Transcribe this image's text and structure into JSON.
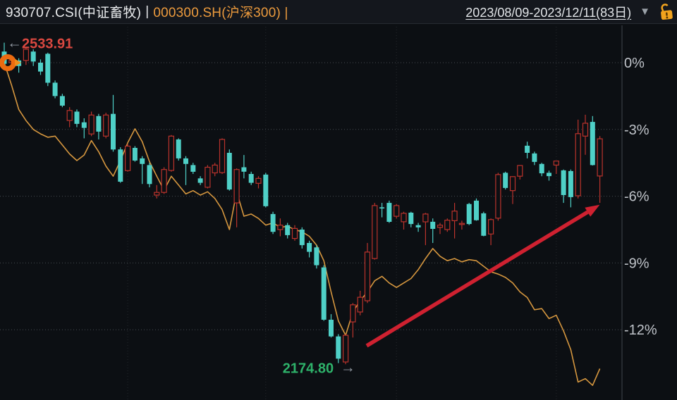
{
  "header": {
    "symbol_primary": "930707.CSI(中证畜牧)",
    "separator": "|",
    "symbol_benchmark": "000300.SH(沪深300) |",
    "date_range": "2023/08/09-2023/12/11(83日)",
    "dropdown_glyph": "▼"
  },
  "colors": {
    "background": "#0c0f13",
    "header_background": "#14171d",
    "title_primary": "#e9ebed",
    "title_benchmark": "#eb9a3d",
    "candle_up": "#bb332c",
    "candle_down": "#4fd0c7",
    "benchmark_line": "#d6973f",
    "trend_arrow": "#cf2130",
    "high_label": "#d94840",
    "low_label": "#2eb26a",
    "lock_icon": "#f2a31d",
    "axis_text": "#bfc3c9"
  },
  "chart_data": {
    "type": "candlestick",
    "title": "930707.CSI(中证畜牧) vs 000300.SH(沪深300) relative performance",
    "x_axis": {
      "start_date": "2023/08/09",
      "end_date": "2023/12/11",
      "days": 83,
      "month_gridline_days": [
        17,
        36,
        54,
        76
      ]
    },
    "y_axis": {
      "unit": "percent_change",
      "ticks": [
        {
          "label": "0%",
          "value": 0
        },
        {
          "label": "-3%",
          "value": -3
        },
        {
          "label": "-6%",
          "value": -6
        },
        {
          "label": "-9%",
          "value": -9
        },
        {
          "label": "-12%",
          "value": -12
        }
      ]
    },
    "series": [
      {
        "name": "930707.CSI 中证畜牧",
        "style": "candles",
        "up_color": "#bb332c",
        "down_color": "#4fd0c7",
        "candles_ohlc_pct": [
          [
            0.5,
            0.9,
            -0.2,
            -0.05
          ],
          [
            0.0,
            0.3,
            -0.35,
            0.1
          ],
          [
            0.1,
            0.2,
            -0.45,
            -0.15
          ],
          [
            0.1,
            0.65,
            -0.1,
            0.6
          ],
          [
            0.5,
            0.6,
            -0.15,
            0.05
          ],
          [
            0.0,
            0.15,
            -0.55,
            -0.4
          ],
          [
            0.4,
            0.45,
            -1.05,
            -0.9
          ],
          [
            -0.9,
            -0.8,
            -1.6,
            -1.5
          ],
          [
            -1.5,
            -1.4,
            -2.0,
            -1.93
          ],
          [
            -2.6,
            -2.0,
            -2.9,
            -2.15
          ],
          [
            -2.2,
            -2.1,
            -2.9,
            -2.75
          ],
          [
            -2.68,
            -2.5,
            -3.4,
            -2.93
          ],
          [
            -3.2,
            -2.2,
            -3.3,
            -2.35
          ],
          [
            -2.4,
            -2.3,
            -3.45,
            -3.1
          ],
          [
            -3.3,
            -2.25,
            -3.4,
            -2.35
          ],
          [
            -2.3,
            -1.45,
            -4.0,
            -3.9
          ],
          [
            -3.9,
            -3.8,
            -5.4,
            -5.35
          ],
          [
            -4.85,
            -3.65,
            -4.9,
            -3.75
          ],
          [
            -3.83,
            -3.75,
            -4.45,
            -4.4
          ],
          [
            -4.3,
            -4.2,
            -5.45,
            -4.55
          ],
          [
            -4.6,
            -4.5,
            -5.6,
            -5.45
          ],
          [
            -5.95,
            -5.5,
            -6.1,
            -5.83
          ],
          [
            -5.83,
            -4.7,
            -5.9,
            -4.8
          ],
          [
            -4.84,
            -3.25,
            -4.9,
            -3.3
          ],
          [
            -3.45,
            -3.4,
            -4.4,
            -4.3
          ],
          [
            -4.3,
            -4.2,
            -5.5,
            -4.55
          ],
          [
            -4.6,
            -4.5,
            -5.0,
            -4.9
          ],
          [
            -5.2,
            -5.1,
            -5.5,
            -5.4
          ],
          [
            -5.6,
            -4.6,
            -5.65,
            -4.7
          ],
          [
            -4.95,
            -4.5,
            -5.1,
            -4.6
          ],
          [
            -4.94,
            -3.4,
            -5.0,
            -3.45
          ],
          [
            -4.05,
            -3.9,
            -5.75,
            -5.7
          ],
          [
            -6.3,
            -4.75,
            -7.4,
            -4.8
          ],
          [
            -4.7,
            -4.15,
            -5.2,
            -4.9
          ],
          [
            -5.0,
            -4.9,
            -5.5,
            -5.4
          ],
          [
            -5.42,
            -5.1,
            -5.65,
            -5.2
          ],
          [
            -5.03,
            -4.95,
            -6.5,
            -6.45
          ],
          [
            -6.8,
            -6.7,
            -7.7,
            -7.6
          ],
          [
            -7.5,
            -7.0,
            -7.8,
            -7.3
          ],
          [
            -7.3,
            -7.2,
            -7.9,
            -7.75
          ],
          [
            -7.9,
            -7.3,
            -8.0,
            -7.45
          ],
          [
            -7.5,
            -7.4,
            -8.35,
            -8.2
          ],
          [
            -8.1,
            -8.0,
            -8.75,
            -8.5
          ],
          [
            -8.3,
            -8.2,
            -9.25,
            -9.1
          ],
          [
            -9.2,
            -9.1,
            -11.6,
            -11.55
          ],
          [
            -11.55,
            -11.3,
            -12.35,
            -12.3
          ],
          [
            -12.3,
            -12.2,
            -13.5,
            -13.3
          ],
          [
            -13.45,
            -12.2,
            -13.55,
            -12.25
          ],
          [
            -11.65,
            -10.8,
            -12.35,
            -10.88
          ],
          [
            -11.2,
            -10.25,
            -11.35,
            -10.54
          ],
          [
            -10.7,
            -8.1,
            -10.8,
            -8.51
          ],
          [
            -8.8,
            -6.3,
            -8.85,
            -6.42
          ],
          [
            -6.5,
            -6.3,
            -6.95,
            -6.55
          ],
          [
            -6.3,
            -6.2,
            -7.2,
            -7.15
          ],
          [
            -6.9,
            -6.35,
            -7.0,
            -6.42
          ],
          [
            -7.15,
            -6.7,
            -7.5,
            -6.77
          ],
          [
            -6.74,
            -6.7,
            -7.4,
            -7.25
          ],
          [
            -7.3,
            -7.2,
            -7.6,
            -7.4
          ],
          [
            -7.15,
            -6.75,
            -8.2,
            -6.8
          ],
          [
            -7.15,
            -7.0,
            -8.1,
            -7.47
          ],
          [
            -7.4,
            -7.2,
            -7.7,
            -7.3
          ],
          [
            -7.5,
            -7.0,
            -7.6,
            -7.08
          ],
          [
            -7.1,
            -6.3,
            -7.9,
            -6.67
          ],
          [
            -7.25,
            -7.1,
            -7.5,
            -7.22
          ],
          [
            -6.35,
            -6.3,
            -7.3,
            -7.25
          ],
          [
            -6.2,
            -6.1,
            -7.1,
            -7.08
          ],
          [
            -6.77,
            -6.7,
            -7.8,
            -7.78
          ],
          [
            -7.7,
            -7.0,
            -8.2,
            -7.05
          ],
          [
            -6.99,
            -4.95,
            -7.1,
            -5.03
          ],
          [
            -4.95,
            -4.9,
            -5.7,
            -5.63
          ],
          [
            -5.75,
            -5.1,
            -6.35,
            -5.12
          ],
          [
            -5.1,
            -4.6,
            -5.25,
            -4.62
          ],
          [
            -3.73,
            -3.55,
            -4.3,
            -4.05
          ],
          [
            -4.08,
            -4.0,
            -4.6,
            -4.46
          ],
          [
            -4.55,
            -4.5,
            -5.1,
            -4.97
          ],
          [
            -4.95,
            -4.85,
            -5.3,
            -5.1
          ],
          [
            -4.6,
            -4.4,
            -5.0,
            -4.42
          ],
          [
            -4.84,
            -4.8,
            -6.3,
            -5.95
          ],
          [
            -4.87,
            -4.8,
            -6.5,
            -6.04
          ],
          [
            -5.98,
            -2.56,
            -6.1,
            -3.19
          ],
          [
            -3.3,
            -2.34,
            -4.14,
            -2.72
          ],
          [
            -2.66,
            -2.4,
            -4.62,
            -4.6
          ],
          [
            -5.09,
            -3.3,
            -6.3,
            -3.42
          ]
        ]
      },
      {
        "name": "000300.SH 沪深300",
        "style": "line",
        "color": "#d6973f",
        "values_pct": [
          0,
          -1.0,
          -2.1,
          -2.6,
          -3.0,
          -3.2,
          -3.35,
          -3.3,
          -3.7,
          -4.1,
          -4.4,
          -4.15,
          -3.5,
          -4.0,
          -4.65,
          -5.1,
          -4.4,
          -3.6,
          -2.97,
          -3.55,
          -4.45,
          -5.1,
          -5.73,
          -5.1,
          -5.5,
          -5.9,
          -5.75,
          -5.95,
          -5.8,
          -6.1,
          -6.6,
          -7.5,
          -5.8,
          -6.9,
          -6.8,
          -7.0,
          -7.3,
          -7.2,
          -7.4,
          -7.35,
          -7.5,
          -7.6,
          -7.8,
          -8.2,
          -8.9,
          -10.3,
          -11.6,
          -12.25,
          -11.2,
          -10.7,
          -10.3,
          -9.8,
          -9.6,
          -9.9,
          -10.1,
          -9.9,
          -9.7,
          -9.3,
          -8.8,
          -8.35,
          -8.7,
          -8.9,
          -8.8,
          -8.95,
          -8.85,
          -8.9,
          -9.15,
          -9.4,
          -9.5,
          -9.65,
          -9.9,
          -10.3,
          -10.55,
          -11.1,
          -11.05,
          -11.5,
          -11.35,
          -12.05,
          -12.9,
          -14.35,
          -14.2,
          -14.5,
          -13.75
        ]
      }
    ],
    "annotations": {
      "high_label": {
        "text": "2533.91",
        "arrow_glyph": "←",
        "color": "#d94840",
        "day": 0,
        "pct": 0.9
      },
      "low_label": {
        "text": "2174.80",
        "arrow_glyph": "→",
        "color": "#2eb26a",
        "day": 46,
        "pct": -13.5
      },
      "trend_arrow": {
        "color": "#cf2130",
        "from_day": 49.9,
        "from_pct": -12.72,
        "to_day": 81.4,
        "to_pct": -6.5
      },
      "start_marker": {
        "color": "#ec6b10",
        "day": 0,
        "pct": 0
      }
    }
  }
}
